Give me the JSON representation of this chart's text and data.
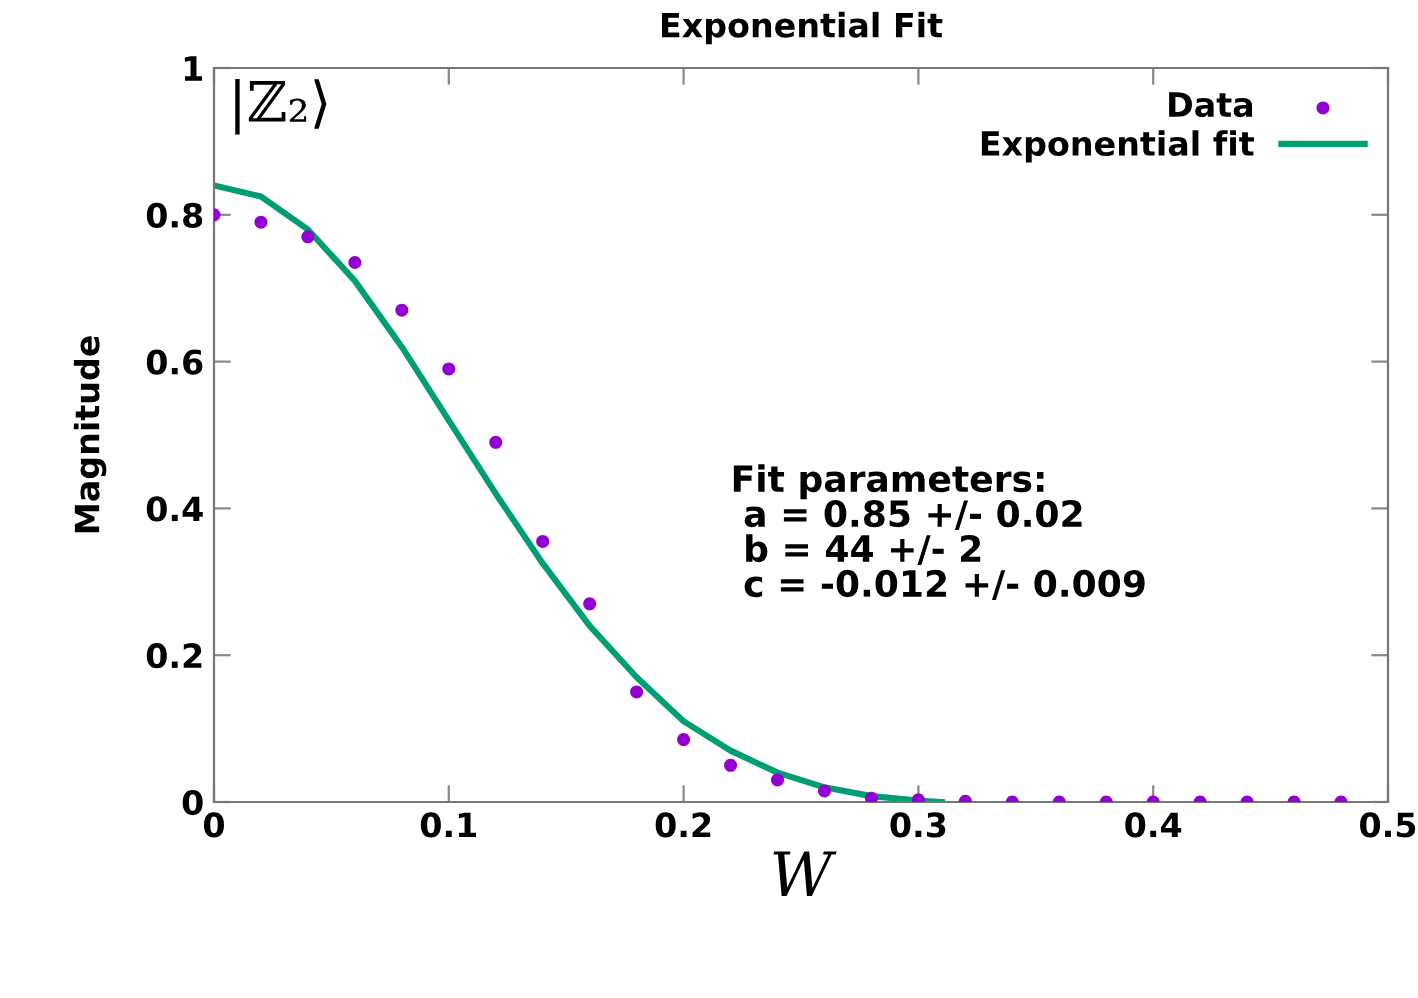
{
  "chart_data": {
    "type": "scatter",
    "title": "Exponential Fit",
    "xlabel": "W",
    "ylabel": "Magnitude",
    "xlim": [
      0,
      0.5
    ],
    "xticks": [
      0,
      0.1,
      0.2,
      0.3,
      0.4,
      0.5
    ],
    "ylim": [
      0,
      1
    ],
    "yticks": [
      0,
      0.2,
      0.4,
      0.6,
      0.8,
      1
    ],
    "grid": false,
    "legend": "top right",
    "annotations": [
      "|ℤ₂⟩",
      "Fit parameters:\n a = 0.85 +/- 0.02\n b = 44 +/- 2\n c = -0.012 +/- 0.009"
    ],
    "series": [
      {
        "name": "Data",
        "marker": "circle",
        "color": "#9400d3",
        "x": [
          0,
          0.02,
          0.04,
          0.06,
          0.08,
          0.1,
          0.12,
          0.14,
          0.16,
          0.18,
          0.2,
          0.22,
          0.24,
          0.26,
          0.28,
          0.3,
          0.32,
          0.34,
          0.36,
          0.38,
          0.4,
          0.42,
          0.44,
          0.46,
          0.48
        ],
        "values": [
          0.8,
          0.79,
          0.77,
          0.735,
          0.67,
          0.59,
          0.49,
          0.355,
          0.27,
          0.15,
          0.085,
          0.05,
          0.03,
          0.015,
          0.005,
          0.003,
          0.001,
          0,
          0,
          0,
          0,
          0,
          0,
          0,
          0
        ]
      },
      {
        "name": "Exponential fit",
        "type": "line",
        "marker": "none",
        "line_style": "solid",
        "color": "#009e73",
        "x": [
          0,
          0.02,
          0.04,
          0.06,
          0.08,
          0.1,
          0.12,
          0.14,
          0.16,
          0.18,
          0.2,
          0.22,
          0.24,
          0.26,
          0.28,
          0.3,
          0.31
        ],
        "values": [
          0.84,
          0.825,
          0.78,
          0.71,
          0.62,
          0.52,
          0.42,
          0.325,
          0.24,
          0.17,
          0.11,
          0.07,
          0.04,
          0.02,
          0.008,
          0.002,
          0
        ]
      }
    ]
  }
}
